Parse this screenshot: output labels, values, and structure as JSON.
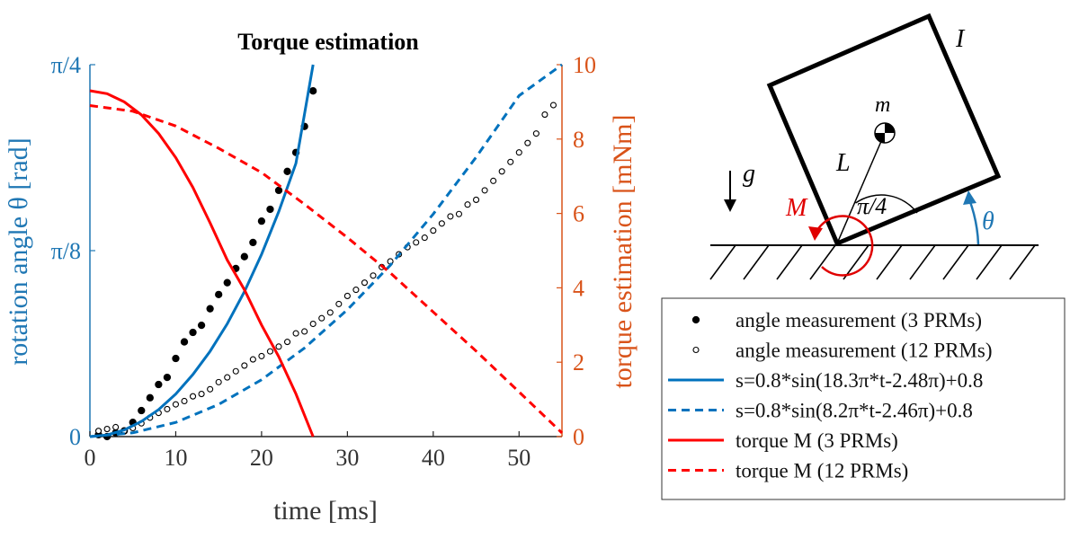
{
  "colors": {
    "left_axis": "#1f77b4",
    "right_axis": "#d95319",
    "blue": "#0072bd",
    "red": "#ff0000",
    "black": "#000000"
  },
  "chart_data": {
    "type": "line",
    "title": "Torque estimation",
    "xlabel": "time [ms]",
    "ylabel_left": "rotation angle θ [rad]",
    "ylabel_right": "torque estimation [mNm]",
    "xlim": [
      0,
      55
    ],
    "ylim_left": [
      0,
      0.7854
    ],
    "ylim_right": [
      0,
      10
    ],
    "x_ticks": [
      0,
      10,
      20,
      30,
      40,
      50
    ],
    "x_tick_labels": [
      "0",
      "10",
      "20",
      "30",
      "40",
      "50"
    ],
    "left_ticks": [
      0,
      0.3927,
      0.7854
    ],
    "left_tick_labels": [
      "0",
      "π/8",
      "π/4"
    ],
    "right_ticks": [
      0,
      2,
      4,
      6,
      8,
      10
    ],
    "right_tick_labels": [
      "0",
      "2",
      "4",
      "6",
      "8",
      "10"
    ],
    "grid": false,
    "legend_position": "bottom-right",
    "series": [
      {
        "name": "angle measurement (3 PRMs)",
        "kind": "points-filled",
        "axis": "left",
        "x": [
          1.0,
          2.0,
          3.0,
          4.0,
          5.0,
          6.0,
          7.0,
          8.0,
          9.0,
          10.0,
          11.0,
          12.0,
          13.0,
          14.0,
          15.0,
          16.0,
          17.0,
          18.0,
          19.0,
          20.0,
          21.0,
          22.0,
          23.0,
          24.0,
          25.0,
          26.0
        ],
        "y": [
          0.004,
          0.0,
          0.008,
          0.012,
          0.03,
          0.055,
          0.082,
          0.11,
          0.125,
          0.165,
          0.2,
          0.22,
          0.235,
          0.27,
          0.3,
          0.325,
          0.355,
          0.38,
          0.41,
          0.455,
          0.48,
          0.52,
          0.56,
          0.6,
          0.655,
          0.73
        ]
      },
      {
        "name": "angle measurement (12 PRMs)",
        "kind": "points-open",
        "axis": "left",
        "x": [
          1,
          2,
          3,
          4,
          5,
          6,
          7,
          8,
          9,
          10,
          11,
          12,
          13,
          14,
          15,
          16,
          17,
          18,
          19,
          20,
          21,
          22,
          23,
          24,
          25,
          26,
          27,
          28,
          29,
          30,
          31,
          32,
          33,
          34,
          35,
          36,
          37,
          38,
          39,
          40,
          41,
          42,
          43,
          44,
          45,
          46,
          47,
          48,
          49,
          50,
          51,
          52,
          53,
          54
        ],
        "y": [
          0.012,
          0.016,
          0.02,
          0.012,
          0.018,
          0.028,
          0.04,
          0.05,
          0.058,
          0.068,
          0.075,
          0.085,
          0.09,
          0.1,
          0.115,
          0.125,
          0.138,
          0.15,
          0.163,
          0.17,
          0.18,
          0.19,
          0.2,
          0.218,
          0.222,
          0.238,
          0.25,
          0.262,
          0.28,
          0.297,
          0.31,
          0.325,
          0.34,
          0.358,
          0.37,
          0.385,
          0.4,
          0.41,
          0.42,
          0.435,
          0.45,
          0.465,
          0.47,
          0.49,
          0.5,
          0.52,
          0.54,
          0.56,
          0.58,
          0.6,
          0.62,
          0.64,
          0.68,
          0.7
        ]
      },
      {
        "name": "s=0.8*sin(18.3π*t-2.48π)+0.8",
        "kind": "line-solid",
        "axis": "left",
        "x": [
          0,
          2,
          4,
          6,
          8,
          10,
          12,
          14,
          16,
          18,
          20,
          22,
          24,
          26
        ],
        "y": [
          0.0,
          0.0035,
          0.014,
          0.032,
          0.057,
          0.09,
          0.131,
          0.18,
          0.238,
          0.306,
          0.385,
          0.475,
          0.577,
          0.7854
        ]
      },
      {
        "name": "s=0.8*sin(8.2π*t-2.46π)+0.8",
        "kind": "line-dashed",
        "axis": "left",
        "x": [
          0,
          5,
          10,
          15,
          20,
          25,
          30,
          35,
          40,
          45,
          50,
          55
        ],
        "y": [
          0.0,
          0.008,
          0.03,
          0.068,
          0.12,
          0.187,
          0.268,
          0.362,
          0.47,
          0.59,
          0.72,
          0.7854
        ]
      },
      {
        "name": "torque M (3 PRMs)",
        "kind": "line-solid",
        "axis": "right",
        "x": [
          0,
          2,
          4,
          6,
          8,
          10,
          12,
          14,
          16,
          18,
          20,
          22,
          24,
          26
        ],
        "y": [
          9.3,
          9.22,
          9.0,
          8.65,
          8.15,
          7.5,
          6.7,
          5.75,
          4.75,
          3.95,
          3.0,
          2.15,
          1.15,
          0.0
        ]
      },
      {
        "name": "torque M (12 PRMs)",
        "kind": "line-dashed",
        "axis": "right",
        "x": [
          0,
          5,
          10,
          15,
          20,
          25,
          30,
          35,
          40,
          45,
          50,
          55
        ],
        "y": [
          8.9,
          8.75,
          8.35,
          7.75,
          7.1,
          6.25,
          5.35,
          4.4,
          3.35,
          2.3,
          1.2,
          0.1
        ]
      }
    ]
  },
  "diagram": {
    "inertia_label": "I",
    "mass_label": "m",
    "length_label": "L",
    "gravity_label": "g",
    "moment_label": "M",
    "angle_label": "π/4",
    "theta_label": "θ"
  }
}
